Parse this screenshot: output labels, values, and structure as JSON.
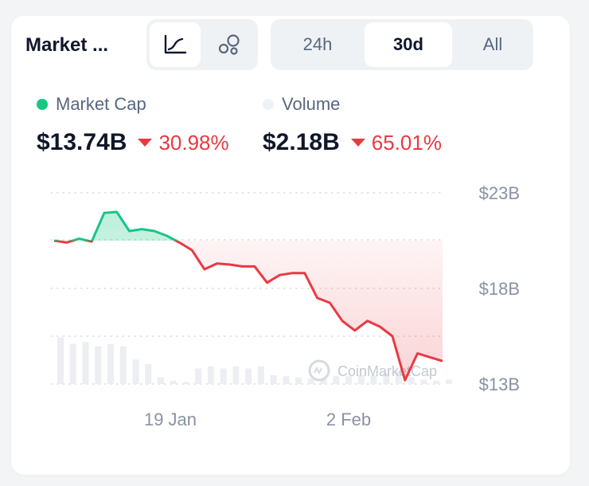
{
  "header": {
    "title": "Market ...",
    "chart_types": [
      {
        "name": "line-chart",
        "icon": "line-chart-icon",
        "active": true
      },
      {
        "name": "bubble-chart",
        "icon": "bubbles-icon",
        "active": false
      }
    ],
    "ranges": [
      {
        "label": "24h",
        "active": false
      },
      {
        "label": "30d",
        "active": true
      },
      {
        "label": "All",
        "active": false
      }
    ]
  },
  "metrics": {
    "market_cap": {
      "label": "Market Cap",
      "value": "$13.74B",
      "change": "30.98%",
      "dot_color": "#16c784"
    },
    "volume": {
      "label": "Volume",
      "value": "$2.18B",
      "change": "65.01%",
      "dot_color": "#eff2f5"
    }
  },
  "colors": {
    "up": "#16c784",
    "down": "#ea3943",
    "text_muted": "#58667e",
    "volume_bar": "#eceef1"
  },
  "watermark": "CoinMarketCap",
  "chart_data": {
    "type": "line",
    "x_labels": [
      "19 Jan",
      "2 Feb"
    ],
    "y_ticks": [
      "$23B",
      "$18B",
      "$13B"
    ],
    "ylim": [
      13,
      23
    ],
    "baseline": 20.5,
    "series": [
      {
        "values": [
          20.5,
          20.4,
          20.6,
          20.45,
          21.95,
          22.0,
          21.0,
          21.1,
          21.0,
          20.75,
          20.4,
          20.0,
          19.0,
          19.3,
          19.25,
          19.15,
          19.15,
          18.3,
          18.7,
          18.8,
          18.8,
          17.5,
          17.25,
          16.3,
          15.8,
          16.3,
          16.0,
          15.5,
          13.2,
          14.6,
          14.4,
          14.2
        ]
      }
    ],
    "volume": [
      0.42,
      0.36,
      0.38,
      0.34,
      0.36,
      0.34,
      0.22,
      0.18,
      0.06,
      0.03,
      0.02,
      0.14,
      0.16,
      0.14,
      0.16,
      0.14,
      0.16,
      0.08,
      0.07,
      0.06,
      0.05,
      0.05,
      0.07,
      0.07,
      0.08,
      0.08,
      0.1,
      0.12,
      0.06,
      0.04,
      0.03,
      0.04
    ],
    "grid": true,
    "legend": "top-left"
  }
}
